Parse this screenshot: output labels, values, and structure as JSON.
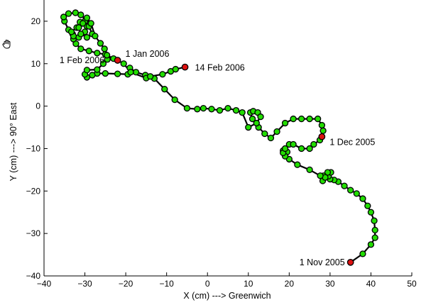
{
  "chart_data": {
    "type": "line",
    "title": "",
    "xlabel": "X (cm) ---> Greenwich",
    "ylabel": "Y (cm) ---> 90° East",
    "xlim": [
      -40,
      50
    ],
    "ylim": [
      -40,
      25
    ],
    "xticks": [
      -40,
      -30,
      -20,
      -10,
      0,
      10,
      20,
      30,
      40,
      50
    ],
    "yticks": [
      -40,
      -30,
      -20,
      -10,
      0,
      10,
      20
    ],
    "grid": false,
    "line_color": "#000000",
    "marker_color": "#22dd00",
    "highlight_color": "#dd1111",
    "points": [
      [
        35,
        -36.8
      ],
      [
        38,
        -34.8
      ],
      [
        40,
        -32.6
      ],
      [
        41,
        -31
      ],
      [
        41,
        -29.2
      ],
      [
        40.8,
        -27
      ],
      [
        40,
        -25
      ],
      [
        39.2,
        -23.5
      ],
      [
        38,
        -21.8
      ],
      [
        36.5,
        -20.6
      ],
      [
        35,
        -19.8
      ],
      [
        33.5,
        -18.8
      ],
      [
        32,
        -17.8
      ],
      [
        31,
        -17.4
      ],
      [
        30,
        -17.2
      ],
      [
        29.6,
        -16.5
      ],
      [
        30.2,
        -15.6
      ],
      [
        29.4,
        -15.6
      ],
      [
        28.4,
        -16.4
      ],
      [
        28.2,
        -17.6
      ],
      [
        28.8,
        -16.8
      ],
      [
        27.6,
        -16.4
      ],
      [
        25,
        -15
      ],
      [
        22,
        -13.8
      ],
      [
        20,
        -12.5
      ],
      [
        19,
        -11.5
      ],
      [
        19.5,
        -10.8
      ],
      [
        18.5,
        -10.5
      ],
      [
        19,
        -11.8
      ],
      [
        18.5,
        -11
      ],
      [
        19,
        -10
      ],
      [
        20,
        -9
      ],
      [
        21,
        -9
      ],
      [
        23,
        -10
      ],
      [
        25,
        -10
      ],
      [
        26,
        -9
      ],
      [
        27.5,
        -8
      ],
      [
        28,
        -7.2
      ],
      [
        28.3,
        -5.8
      ],
      [
        28,
        -4.5
      ],
      [
        27,
        -3
      ],
      [
        25,
        -3
      ],
      [
        23,
        -3
      ],
      [
        21,
        -3
      ],
      [
        19,
        -4
      ],
      [
        17,
        -6
      ],
      [
        15.5,
        -7.5
      ],
      [
        14,
        -6.5
      ],
      [
        12.5,
        -5
      ],
      [
        11,
        -3
      ],
      [
        10.5,
        -1.5
      ],
      [
        11.2,
        -1.2
      ],
      [
        12.3,
        -1.5
      ],
      [
        13,
        -2.5
      ],
      [
        12,
        -4
      ],
      [
        10,
        -5
      ],
      [
        8.5,
        -1.5
      ],
      [
        7,
        -1
      ],
      [
        5,
        -0.5
      ],
      [
        3,
        -1
      ],
      [
        1,
        -0.7
      ],
      [
        -1,
        -0.5
      ],
      [
        -2.5,
        -0.7
      ],
      [
        -5,
        -0.5
      ],
      [
        -8,
        1.5
      ],
      [
        -10.5,
        4
      ],
      [
        -13,
        6.5
      ],
      [
        -15.2,
        7.3
      ],
      [
        -17.5,
        8
      ],
      [
        -19,
        9
      ],
      [
        -19.5,
        7.5
      ],
      [
        -22,
        7.6
      ],
      [
        -25,
        7.7
      ],
      [
        -27,
        7.7
      ],
      [
        -28.2,
        7.3
      ],
      [
        -29.5,
        6.8
      ],
      [
        -30,
        7.5
      ],
      [
        -29.5,
        8.5
      ],
      [
        -27,
        8.6
      ],
      [
        -25.5,
        10
      ],
      [
        -24.5,
        11
      ],
      [
        -25,
        12.2
      ],
      [
        -27,
        12.5
      ],
      [
        -29,
        13
      ],
      [
        -31,
        13.5
      ],
      [
        -32.2,
        14.7
      ],
      [
        -32.8,
        15.8
      ],
      [
        -33,
        17
      ],
      [
        -34,
        18
      ],
      [
        -35,
        20
      ],
      [
        -35.2,
        21
      ],
      [
        -34,
        21.8
      ],
      [
        -32.3,
        22
      ],
      [
        -31,
        21.5
      ],
      [
        -29.8,
        20.3
      ],
      [
        -29.5,
        18.8
      ],
      [
        -30,
        17.5
      ],
      [
        -31.5,
        16.2
      ],
      [
        -32.8,
        16.5
      ],
      [
        -33.3,
        17.5
      ],
      [
        -32,
        18.5
      ],
      [
        -31.2,
        19.8
      ],
      [
        -30,
        20
      ],
      [
        -29,
        18.8
      ],
      [
        -28.2,
        17
      ],
      [
        -29.5,
        16.2
      ],
      [
        -31,
        17
      ],
      [
        -31.5,
        18.5
      ],
      [
        -30.5,
        19.5
      ],
      [
        -29.5,
        20.8
      ],
      [
        -28.5,
        19.5
      ],
      [
        -27.5,
        16.5
      ],
      [
        -26.2,
        14.8
      ],
      [
        -25.2,
        13.5
      ],
      [
        -24.6,
        12
      ],
      [
        -23,
        11.2
      ],
      [
        -22,
        10.8
      ],
      [
        -20.5,
        10
      ],
      [
        -18.8,
        8
      ],
      [
        -15,
        6.6
      ],
      [
        -14,
        7
      ],
      [
        -11,
        7.5
      ],
      [
        -9,
        8.2
      ],
      [
        -7.8,
        8.7
      ],
      [
        -5.5,
        9.2
      ]
    ],
    "highlighted_points": [
      {
        "x": 35,
        "y": -36.8,
        "label": "1 Nov 2005"
      },
      {
        "x": 28,
        "y": -7.2,
        "label": "1 Dec 2005"
      },
      {
        "x": -22,
        "y": 10.8,
        "label": "1 Jan 2006"
      },
      {
        "x": -5.5,
        "y": 9.2,
        "label": "14 Feb 2006"
      }
    ],
    "annotations": [
      {
        "text": "1 Nov 2005",
        "x": 35,
        "y": -36.8
      },
      {
        "text": "1 Dec 2005",
        "x": 28,
        "y": -7.2
      },
      {
        "text": "1 Jan 2006",
        "x": -22,
        "y": 10.8
      },
      {
        "text": "1 Feb 2006",
        "x": -30,
        "y": 10.8
      },
      {
        "text": "14 Feb 2006",
        "x": -5.5,
        "y": 9.2
      }
    ]
  }
}
